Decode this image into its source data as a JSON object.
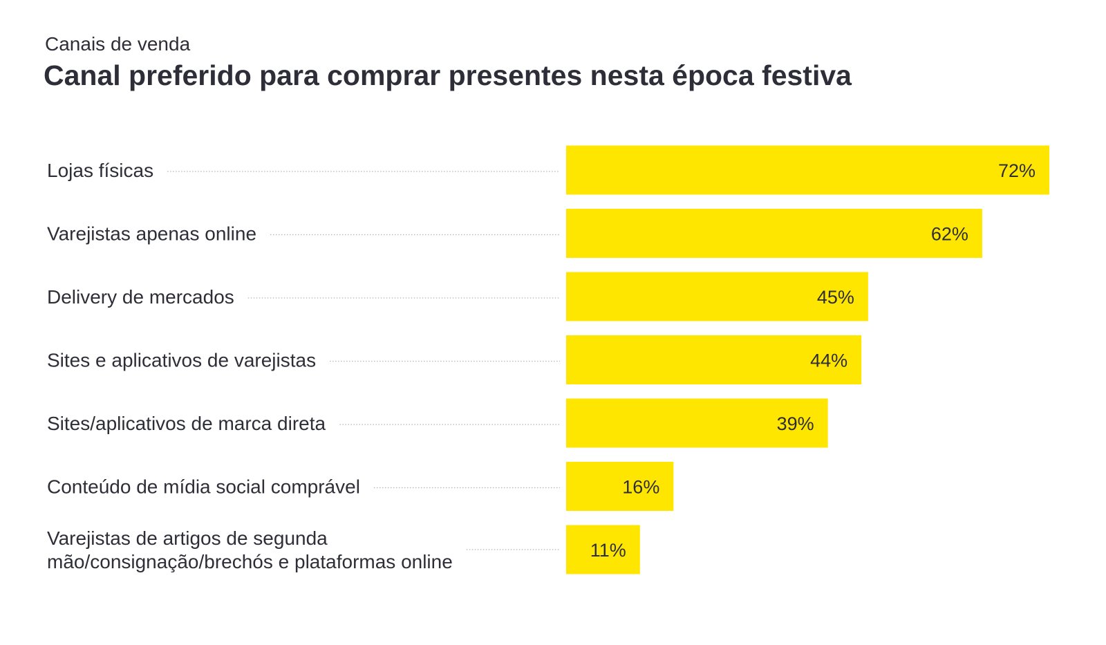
{
  "header": {
    "kicker": "Canais de venda",
    "title": "Canal preferido para comprar presentes nesta época festiva"
  },
  "colors": {
    "bar": "#ffe600",
    "text": "#2e2e38",
    "leader": "#b3b3b3"
  },
  "chart_data": {
    "type": "bar",
    "orientation": "horizontal",
    "categories": [
      "Lojas físicas",
      "Varejistas apenas online",
      "Delivery de mercados",
      "Sites e aplicativos de varejistas",
      "Sites/aplicativos de marca direta",
      "Conteúdo de mídia social comprável",
      "Varejistas de artigos de segunda mão/consignação/brechós e plataformas online"
    ],
    "category_lines": [
      [
        "Lojas físicas"
      ],
      [
        "Varejistas apenas online"
      ],
      [
        "Delivery de mercados"
      ],
      [
        "Sites e aplicativos de varejistas"
      ],
      [
        "Sites/aplicativos de marca direta"
      ],
      [
        "Conteúdo de mídia social comprável"
      ],
      [
        "Varejistas de artigos de segunda",
        "mão/consignação/brechós e plataformas online"
      ]
    ],
    "values": [
      72,
      62,
      45,
      44,
      39,
      16,
      11
    ],
    "value_labels": [
      "72%",
      "62%",
      "45%",
      "44%",
      "39%",
      "16%",
      "11%"
    ],
    "unit": "%",
    "xlim": [
      0,
      72
    ],
    "grid": false,
    "legend": "none"
  }
}
